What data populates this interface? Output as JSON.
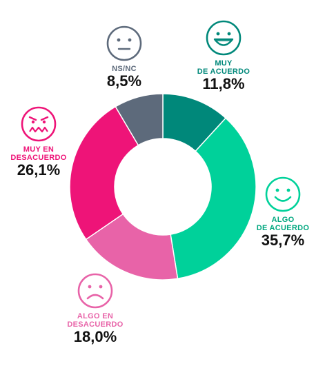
{
  "chart_data": {
    "type": "pie",
    "donut": true,
    "slices": [
      {
        "label": "MUY\nDE ACUERDO",
        "value": 11.8,
        "display": "11,8%",
        "color": "#00887a",
        "icon": "big-smile-face-icon"
      },
      {
        "label": "ALGO\nDE ACUERDO",
        "value": 35.7,
        "display": "35,7%",
        "color": "#00d19a",
        "icon": "smile-face-icon"
      },
      {
        "label": "ALGO EN\nDESACUERDO",
        "value": 18.0,
        "display": "18,0%",
        "color": "#e863a8",
        "icon": "sad-face-icon"
      },
      {
        "label": "MUY EN\nDESACUERDO",
        "value": 26.1,
        "display": "26,1%",
        "color": "#ee1478",
        "icon": "angry-face-icon"
      },
      {
        "label": "NS/NC",
        "value": 8.5,
        "display": "8,5%",
        "color": "#5d6a7b",
        "icon": "neutral-face-icon"
      }
    ],
    "label_colors": [
      "#00887a",
      "#00a77f",
      "#e863a8",
      "#ee1478",
      "#5d6a7b"
    ]
  }
}
